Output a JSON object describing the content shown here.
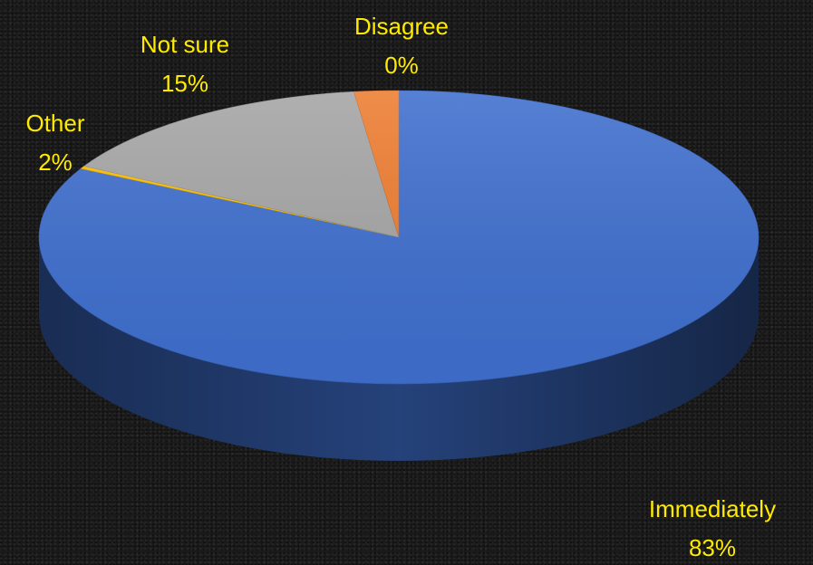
{
  "chart_data": {
    "type": "pie",
    "style": "3d",
    "title": "",
    "categories": [
      "Immediately",
      "Disagree",
      "Not sure",
      "Other"
    ],
    "values": [
      83,
      0.3,
      15,
      2
    ],
    "labels": [
      {
        "category": "Immediately",
        "percent_text": "83%"
      },
      {
        "category": "Disagree",
        "percent_text": "0%"
      },
      {
        "category": "Not sure",
        "percent_text": "15%"
      },
      {
        "category": "Other",
        "percent_text": "2%"
      }
    ],
    "colors": [
      "#3f6fce",
      "#ffc000",
      "#a5a5a5",
      "#ed7d31"
    ],
    "label_color": "#ffeb00",
    "legend": "none",
    "background": "#1b1b1b"
  }
}
